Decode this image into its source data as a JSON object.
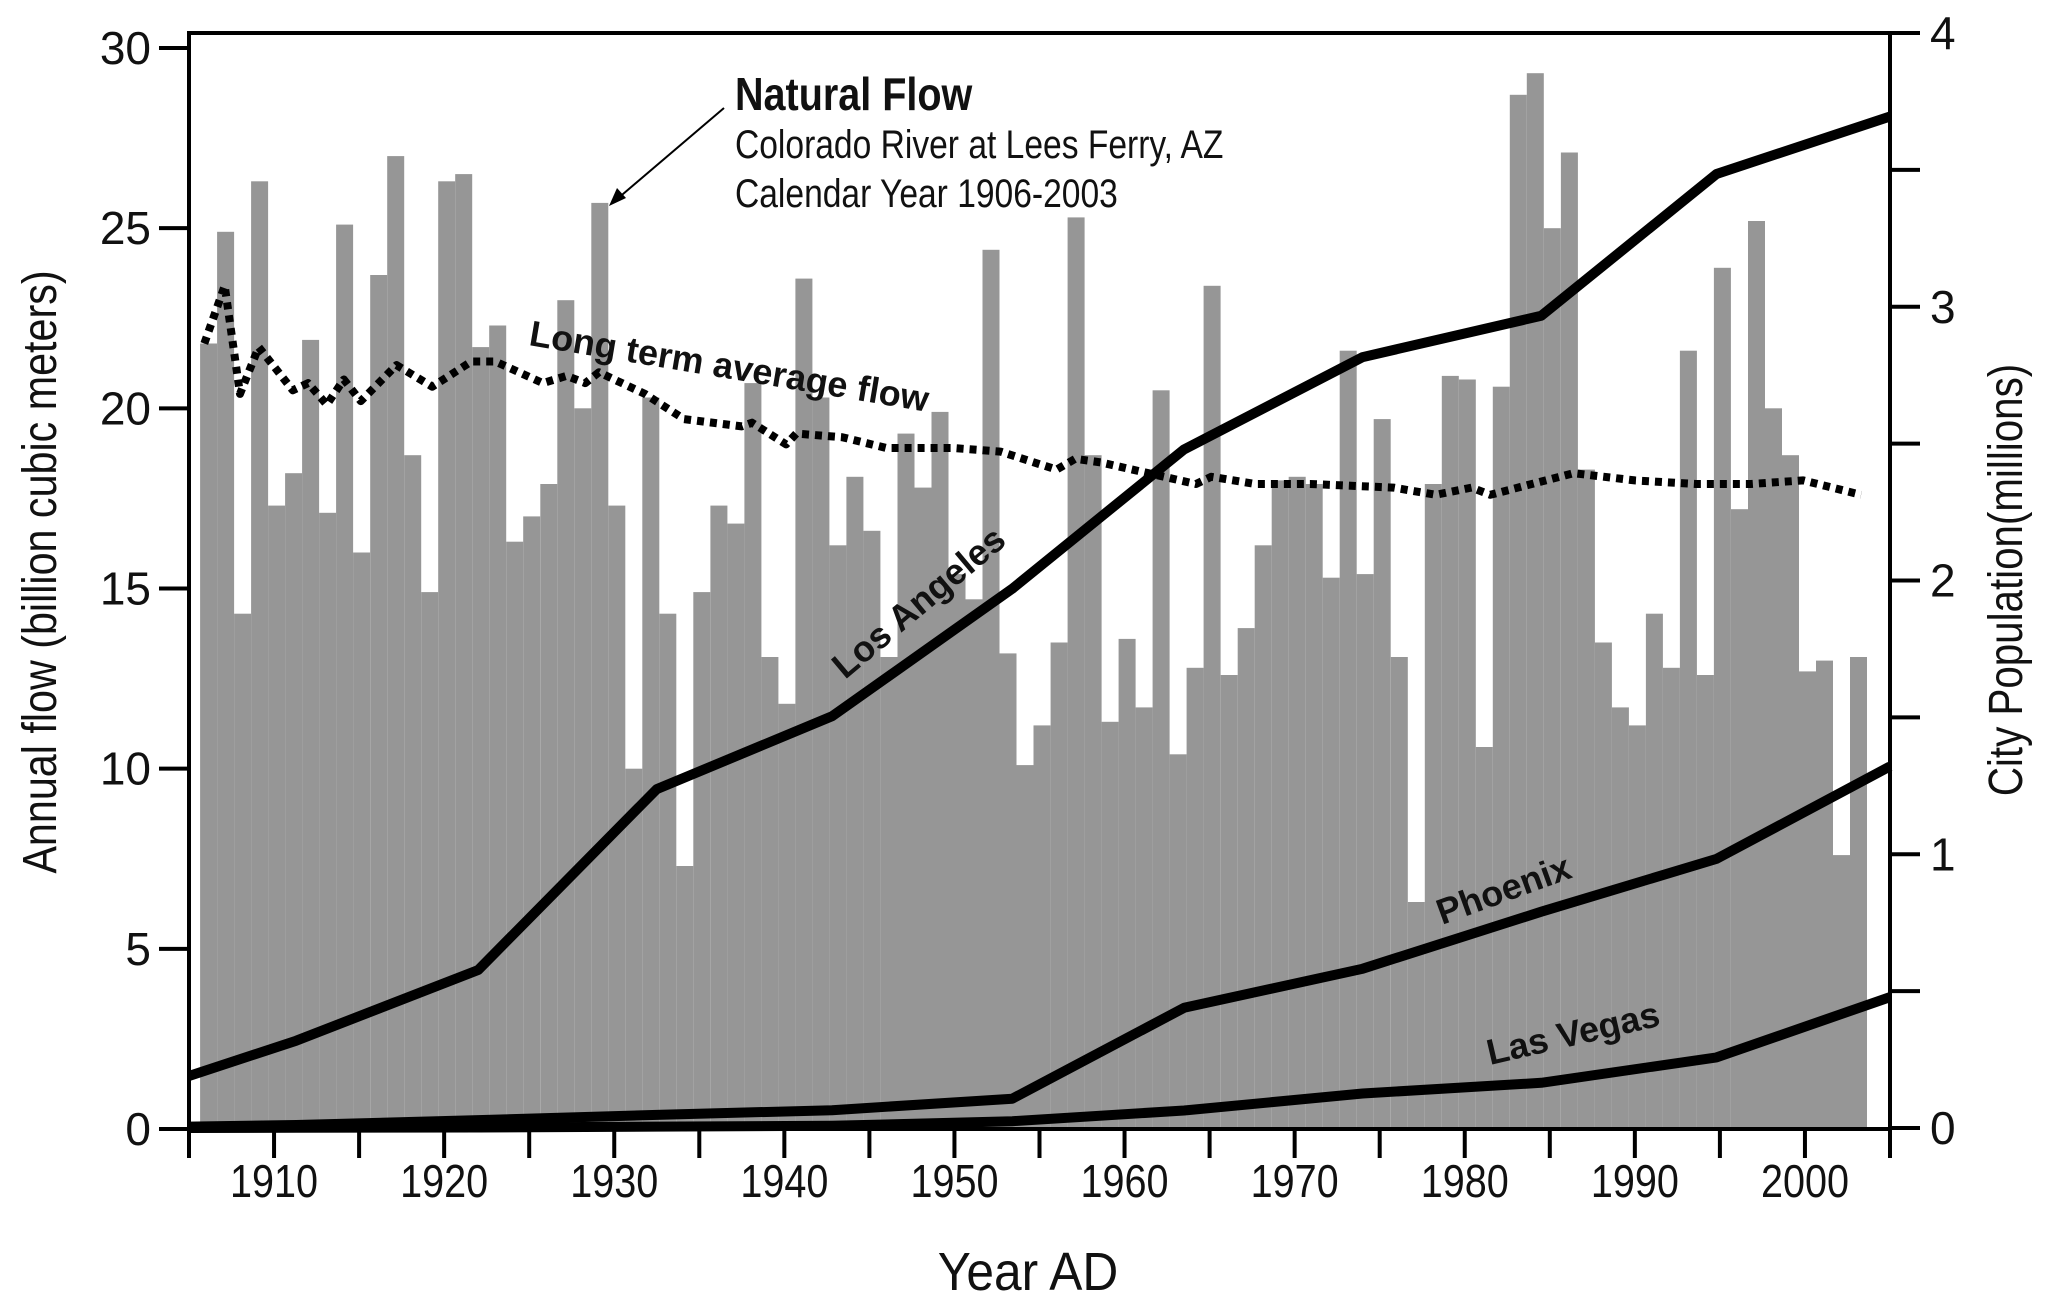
{
  "chart_data": {
    "type": "bar",
    "title": "Natural Flow",
    "subtitle_lines": [
      "Colorado River at Lees Ferry, AZ",
      "Calendar Year 1906-2003"
    ],
    "xlabel": "Year AD",
    "ylabel": "Annual flow (billion cubic meters)",
    "y2label": "City Population(millions)",
    "xlim": [
      1905,
      2005
    ],
    "ylim": [
      0,
      30
    ],
    "y2lim": [
      0,
      4
    ],
    "x_ticks": [
      1910,
      1920,
      1930,
      1940,
      1950,
      1960,
      1970,
      1980,
      1990,
      2000
    ],
    "y_ticks": [
      0,
      5,
      10,
      15,
      20,
      25,
      30
    ],
    "y2_ticks": [
      0,
      1,
      2,
      3,
      4
    ],
    "y2_minor_ticks": [
      0.5,
      1.5,
      2.5,
      3.5
    ],
    "grid": false,
    "legend": "none (inline labels)",
    "bars": {
      "name": "Natural Flow",
      "axis": "left",
      "color": "#969696",
      "years": [
        1906,
        1907,
        1908,
        1909,
        1910,
        1911,
        1912,
        1913,
        1914,
        1915,
        1916,
        1917,
        1918,
        1919,
        1920,
        1921,
        1922,
        1923,
        1924,
        1925,
        1926,
        1927,
        1928,
        1929,
        1930,
        1931,
        1932,
        1933,
        1934,
        1935,
        1936,
        1937,
        1938,
        1939,
        1940,
        1941,
        1942,
        1943,
        1944,
        1945,
        1946,
        1947,
        1948,
        1949,
        1950,
        1951,
        1952,
        1953,
        1954,
        1955,
        1956,
        1957,
        1958,
        1959,
        1960,
        1961,
        1962,
        1963,
        1964,
        1965,
        1966,
        1967,
        1968,
        1969,
        1970,
        1971,
        1972,
        1973,
        1974,
        1975,
        1976,
        1977,
        1978,
        1979,
        1980,
        1981,
        1982,
        1983,
        1984,
        1985,
        1986,
        1987,
        1988,
        1989,
        1990,
        1991,
        1992,
        1993,
        1994,
        1995,
        1996,
        1997,
        1998,
        1999,
        2000,
        2001,
        2002,
        2003
      ],
      "values": [
        21.8,
        24.9,
        14.3,
        26.3,
        17.3,
        18.2,
        21.9,
        17.1,
        25.1,
        16.0,
        23.7,
        27.0,
        18.7,
        14.9,
        26.3,
        26.5,
        21.7,
        22.3,
        16.3,
        17.0,
        17.9,
        23.0,
        20.0,
        25.7,
        17.3,
        10.0,
        20.3,
        14.3,
        7.3,
        14.9,
        17.3,
        16.8,
        20.7,
        13.1,
        11.8,
        23.6,
        20.3,
        16.2,
        18.1,
        16.6,
        13.1,
        19.3,
        17.8,
        19.9,
        15.4,
        14.7,
        24.4,
        13.2,
        10.1,
        11.2,
        13.5,
        25.3,
        18.7,
        11.3,
        13.6,
        11.7,
        20.5,
        10.4,
        12.8,
        23.4,
        12.6,
        13.9,
        16.2,
        18.0,
        18.1,
        17.9,
        15.3,
        21.6,
        15.4,
        19.7,
        13.1,
        6.3,
        17.9,
        20.9,
        20.8,
        10.6,
        20.6,
        28.7,
        29.3,
        25.0,
        27.1,
        18.3,
        13.5,
        11.7,
        11.2,
        14.3,
        12.8,
        21.6,
        12.6,
        23.9,
        17.2,
        25.2,
        20.0,
        18.7,
        12.7,
        13.0,
        7.6,
        13.1
      ]
    },
    "series": [
      {
        "name": "Long term average flow",
        "axis": "left",
        "style": "dotted",
        "x": [
          1905.9,
          1907.1,
          1908.0,
          1909.1,
          1911.1,
          1912.0,
          1913.1,
          1914.1,
          1915.1,
          1917.2,
          1919.3,
          1921.6,
          1923.0,
          1925.8,
          1927.2,
          1928.3,
          1929.1,
          1931.8,
          1934.1,
          1937.5,
          1938.1,
          1940.1,
          1940.7,
          1943.4,
          1946.0,
          1949.9,
          1952.7,
          1956.0,
          1957.1,
          1958.6,
          1961.4,
          1964.2,
          1965.1,
          1967.7,
          1970.9,
          1975.8,
          1978.3,
          1980.4,
          1981.5,
          1986.4,
          1990.0,
          1993.6,
          1996.8,
          1999.9,
          2003.3
        ],
        "values": [
          21.8,
          23.4,
          20.4,
          21.7,
          20.5,
          20.7,
          20.1,
          20.8,
          20.2,
          21.2,
          20.6,
          21.3,
          21.3,
          20.7,
          20.9,
          20.7,
          21.0,
          20.4,
          19.7,
          19.5,
          19.6,
          19.0,
          19.3,
          19.2,
          18.9,
          18.9,
          18.8,
          18.3,
          18.6,
          18.5,
          18.2,
          17.9,
          18.1,
          17.9,
          17.9,
          17.8,
          17.6,
          17.8,
          17.6,
          18.2,
          18.0,
          17.9,
          17.9,
          18.0,
          17.6
        ]
      },
      {
        "name": "Los Angeles",
        "axis": "right",
        "style": "solid",
        "x": [
          1905,
          1911.3,
          1922,
          1932.5,
          1942.8,
          1953.4,
          1963.5,
          1974,
          1984.5,
          1994.8,
          2005
        ],
        "values": [
          0.19,
          0.319,
          0.577,
          1.238,
          1.504,
          1.97,
          2.479,
          2.816,
          2.967,
          3.485,
          3.695
        ]
      },
      {
        "name": "Phoenix",
        "axis": "right",
        "style": "solid",
        "x": [
          1905,
          1911.3,
          1922,
          1932.5,
          1942.8,
          1953.4,
          1963.5,
          1974,
          1984.5,
          1994.8,
          2005
        ],
        "values": [
          0.005,
          0.011,
          0.029,
          0.048,
          0.065,
          0.107,
          0.439,
          0.582,
          0.79,
          0.983,
          1.321
        ]
      },
      {
        "name": "Las Vegas",
        "axis": "right",
        "style": "solid",
        "x": [
          1905,
          1911.3,
          1922,
          1932.5,
          1942.8,
          1953.4,
          1963.5,
          1974,
          1984.5,
          1994.8,
          2005
        ],
        "values": [
          0.0,
          0.001,
          0.002,
          0.005,
          0.008,
          0.025,
          0.064,
          0.126,
          0.165,
          0.258,
          0.478
        ]
      }
    ],
    "annotations": {
      "title": "Natural Flow",
      "line1": "Colorado River at Lees Ferry, AZ",
      "line2": "Calendar Year 1906-2003",
      "arrow_target_year": 1929,
      "series_labels": {
        "average": "Long term average flow",
        "la": "Los Angeles",
        "phoenix": "Phoenix",
        "vegas": "Las Vegas"
      }
    }
  }
}
